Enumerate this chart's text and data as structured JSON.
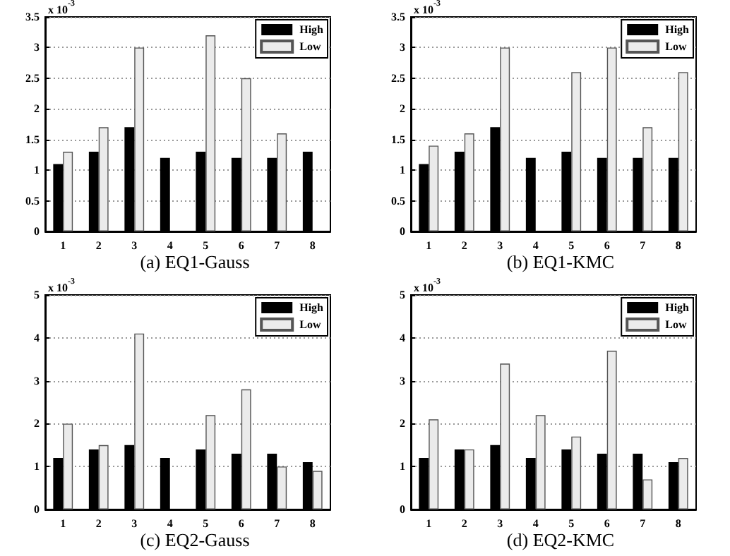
{
  "chart_data": [
    {
      "type": "bar",
      "title": "(a) EQ1-Gauss",
      "categories": [
        "1",
        "2",
        "3",
        "4",
        "5",
        "6",
        "7",
        "8"
      ],
      "series": [
        {
          "name": "High",
          "color": "#000000",
          "values": [
            1.1,
            1.3,
            1.7,
            1.2,
            1.3,
            1.2,
            1.2,
            1.3
          ]
        },
        {
          "name": "Low",
          "color": "#ebebeb",
          "values": [
            1.3,
            1.7,
            3.0,
            null,
            3.2,
            2.5,
            1.6,
            null
          ]
        }
      ],
      "ylim": [
        0,
        3.5
      ],
      "yticks": [
        0,
        0.5,
        1,
        1.5,
        2,
        2.5,
        3,
        3.5
      ],
      "grid": "y",
      "legend": "top right",
      "annotations": [
        "x 10$^{-3}$"
      ]
    },
    {
      "type": "bar",
      "title": "(b) EQ1-KMC",
      "categories": [
        "1",
        "2",
        "3",
        "4",
        "5",
        "6",
        "7",
        "8"
      ],
      "series": [
        {
          "name": "High",
          "color": "#000000",
          "values": [
            1.1,
            1.3,
            1.7,
            1.2,
            1.3,
            1.2,
            1.2,
            1.2
          ]
        },
        {
          "name": "Low",
          "color": "#ebebeb",
          "values": [
            1.4,
            1.6,
            3.0,
            null,
            2.6,
            3.0,
            1.7,
            2.6
          ]
        }
      ],
      "ylim": [
        0,
        3.5
      ],
      "yticks": [
        0,
        0.5,
        1,
        1.5,
        2,
        2.5,
        3,
        3.5
      ],
      "grid": "y",
      "legend": "top right",
      "annotations": [
        "x 10$^{-3}$"
      ]
    },
    {
      "type": "bar",
      "title": "(c) EQ2-Gauss",
      "categories": [
        "1",
        "2",
        "3",
        "4",
        "5",
        "6",
        "7",
        "8"
      ],
      "series": [
        {
          "name": "High",
          "color": "#000000",
          "values": [
            1.2,
            1.4,
            1.5,
            1.2,
            1.4,
            1.3,
            1.3,
            1.1
          ]
        },
        {
          "name": "Low",
          "color": "#ebebeb",
          "values": [
            2.0,
            1.5,
            4.1,
            null,
            2.2,
            2.8,
            1.0,
            0.9
          ]
        }
      ],
      "ylim": [
        0,
        5
      ],
      "yticks": [
        0,
        1,
        2,
        3,
        4,
        5
      ],
      "grid": "y",
      "legend": "top right",
      "annotations": [
        "x 10$^{-3}$"
      ]
    },
    {
      "type": "bar",
      "title": "(d) EQ2-KMC",
      "categories": [
        "1",
        "2",
        "3",
        "4",
        "5",
        "6",
        "7",
        "8"
      ],
      "series": [
        {
          "name": "High",
          "color": "#000000",
          "values": [
            1.2,
            1.4,
            1.5,
            1.2,
            1.4,
            1.3,
            1.3,
            1.1
          ]
        },
        {
          "name": "Low",
          "color": "#ebebeb",
          "values": [
            2.1,
            1.4,
            3.4,
            2.2,
            1.7,
            3.7,
            0.7,
            1.2
          ]
        }
      ],
      "ylim": [
        0,
        5
      ],
      "yticks": [
        0,
        1,
        2,
        3,
        4,
        5
      ],
      "grid": "y",
      "legend": "top right",
      "annotations": [
        "x 10$^{-3}$"
      ]
    }
  ]
}
